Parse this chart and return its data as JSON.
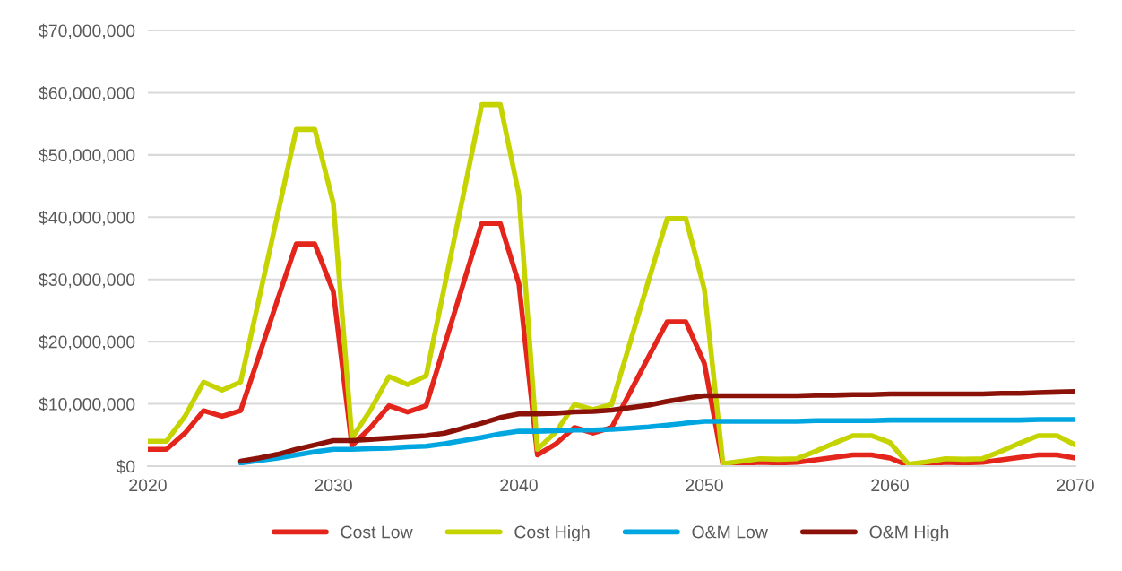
{
  "chart_data": {
    "type": "line",
    "x": [
      2020,
      2021,
      2022,
      2023,
      2024,
      2025,
      2026,
      2027,
      2028,
      2029,
      2030,
      2031,
      2032,
      2033,
      2034,
      2035,
      2036,
      2037,
      2038,
      2039,
      2040,
      2041,
      2042,
      2043,
      2044,
      2045,
      2046,
      2047,
      2048,
      2049,
      2050,
      2051,
      2052,
      2053,
      2054,
      2055,
      2056,
      2057,
      2058,
      2059,
      2060,
      2061,
      2062,
      2063,
      2064,
      2065,
      2066,
      2067,
      2068,
      2069,
      2070
    ],
    "series": [
      {
        "name": "Cost Low",
        "color": "#e3251b",
        "values": [
          2700000,
          2700000,
          5300000,
          8900000,
          8000000,
          8900000,
          17800000,
          26800000,
          35700000,
          35700000,
          28000000,
          3300000,
          6200000,
          9700000,
          8700000,
          9700000,
          19500000,
          29300000,
          39000000,
          39000000,
          29300000,
          1800000,
          3600000,
          6200000,
          5300000,
          6200000,
          11900000,
          17600000,
          23200000,
          23200000,
          16500000,
          200000,
          400000,
          600000,
          500000,
          600000,
          1000000,
          1400000,
          1800000,
          1800000,
          1300000,
          100000,
          300000,
          600000,
          500000,
          600000,
          1000000,
          1400000,
          1800000,
          1800000,
          1300000
        ]
      },
      {
        "name": "Cost High",
        "color": "#c5d400",
        "values": [
          4000000,
          4000000,
          8000000,
          13500000,
          12200000,
          13500000,
          27000000,
          40500000,
          54100000,
          54100000,
          42200000,
          4500000,
          9000000,
          14400000,
          13100000,
          14500000,
          29000000,
          43500000,
          58100000,
          58100000,
          43600000,
          2700000,
          5500000,
          9900000,
          9100000,
          9900000,
          19900000,
          29900000,
          39800000,
          39800000,
          28400000,
          400000,
          800000,
          1200000,
          1100000,
          1200000,
          2400000,
          3700000,
          4900000,
          4900000,
          3800000,
          300000,
          700000,
          1200000,
          1100000,
          1200000,
          2400000,
          3700000,
          4900000,
          4900000,
          3400000
        ]
      },
      {
        "name": "O&M Low",
        "color": "#00a6e0",
        "values": [
          null,
          null,
          null,
          null,
          null,
          500000,
          900000,
          1300000,
          1800000,
          2300000,
          2700000,
          2700000,
          2800000,
          2900000,
          3100000,
          3200000,
          3600000,
          4100000,
          4600000,
          5200000,
          5600000,
          5600000,
          5700000,
          5800000,
          5800000,
          5900000,
          6100000,
          6300000,
          6600000,
          6900000,
          7200000,
          7200000,
          7200000,
          7200000,
          7200000,
          7200000,
          7300000,
          7300000,
          7300000,
          7300000,
          7400000,
          7400000,
          7400000,
          7400000,
          7400000,
          7400000,
          7400000,
          7400000,
          7500000,
          7500000,
          7500000
        ]
      },
      {
        "name": "O&M High",
        "color": "#8b1209",
        "values": [
          null,
          null,
          null,
          null,
          null,
          800000,
          1300000,
          1900000,
          2700000,
          3400000,
          4100000,
          4100000,
          4300000,
          4500000,
          4700000,
          4900000,
          5300000,
          6100000,
          6900000,
          7800000,
          8400000,
          8400000,
          8500000,
          8700000,
          8800000,
          9000000,
          9400000,
          9800000,
          10400000,
          10900000,
          11300000,
          11300000,
          11300000,
          11300000,
          11300000,
          11300000,
          11400000,
          11400000,
          11500000,
          11500000,
          11600000,
          11600000,
          11600000,
          11600000,
          11600000,
          11600000,
          11700000,
          11700000,
          11800000,
          11900000,
          12000000
        ]
      }
    ],
    "xlim": [
      2020,
      2070
    ],
    "xticks": [
      2020,
      2030,
      2040,
      2050,
      2060,
      2070
    ],
    "ylim": [
      0,
      70000000
    ],
    "yticks": [
      {
        "value": 0,
        "label": "$0"
      },
      {
        "value": 10000000,
        "label": "$10,000,000"
      },
      {
        "value": 20000000,
        "label": "$20,000,000"
      },
      {
        "value": 30000000,
        "label": "$30,000,000"
      },
      {
        "value": 40000000,
        "label": "$40,000,000"
      },
      {
        "value": 50000000,
        "label": "$50,000,000"
      },
      {
        "value": 60000000,
        "label": "$60,000,000"
      },
      {
        "value": 70000000,
        "label": "$70,000,000"
      }
    ],
    "grid": "y",
    "legend": "bottom",
    "marker": "none",
    "line_style": "solid"
  }
}
